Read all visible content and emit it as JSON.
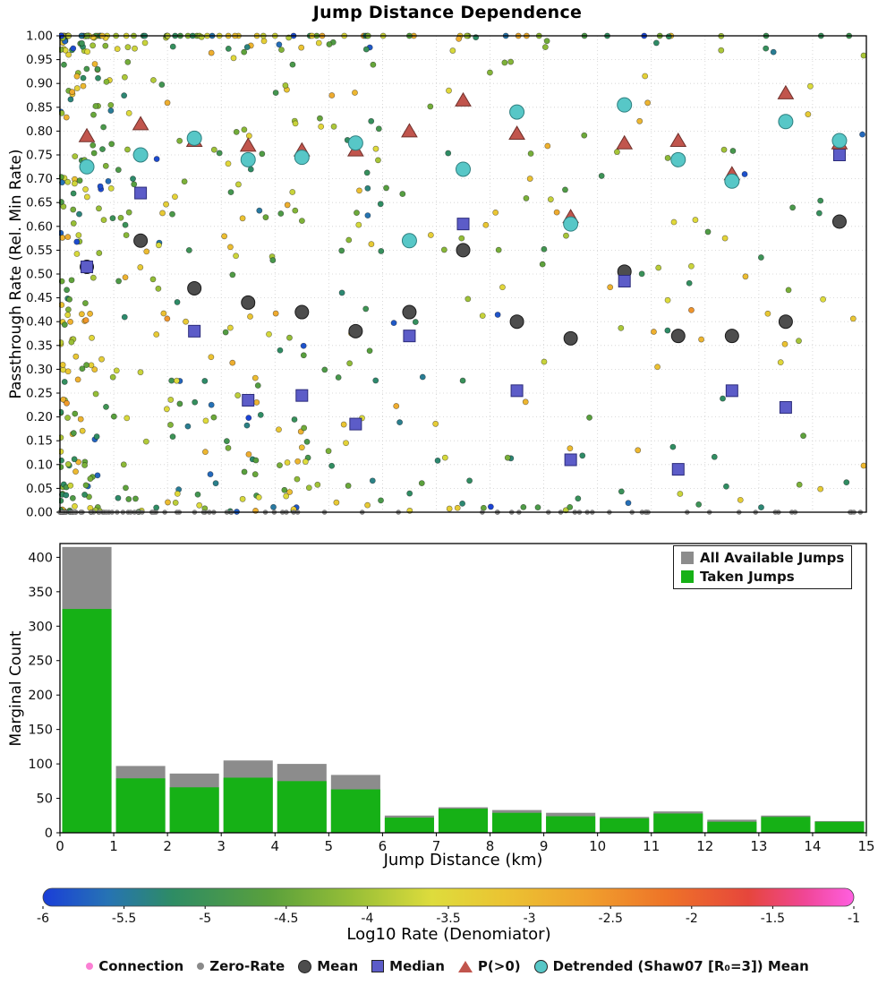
{
  "page_title": "Jump Distance Dependence",
  "chart_data": [
    {
      "type": "scatter",
      "title": "Jump Distance Dependence",
      "ylabel": "Passthrough Rate (Rel. Min Rate)",
      "xlim": [
        0,
        15
      ],
      "ylim": [
        0,
        1
      ],
      "grid": true,
      "yticks": [
        "0.00",
        "0.05",
        "0.10",
        "0.15",
        "0.20",
        "0.25",
        "0.30",
        "0.35",
        "0.40",
        "0.45",
        "0.50",
        "0.55",
        "0.60",
        "0.65",
        "0.70",
        "0.75",
        "0.80",
        "0.85",
        "0.90",
        "0.95",
        "1.00"
      ],
      "series": [
        {
          "name": "Mean",
          "marker": "circle",
          "fill": "#4d4d4d",
          "edge": "#1a1a1a",
          "x": [
            0.5,
            1.5,
            2.5,
            3.5,
            4.5,
            5.5,
            6.5,
            7.5,
            8.5,
            9.5,
            10.5,
            11.5,
            12.5,
            13.5,
            14.5
          ],
          "y": [
            0.515,
            0.57,
            0.47,
            0.44,
            0.42,
            0.38,
            0.42,
            0.55,
            0.4,
            0.365,
            0.505,
            0.37,
            0.37,
            0.4,
            0.61
          ]
        },
        {
          "name": "Median",
          "marker": "square",
          "fill": "#5c5cc8",
          "edge": "#2b2b7a",
          "x": [
            0.5,
            1.5,
            2.5,
            3.5,
            4.5,
            5.5,
            6.5,
            7.5,
            8.5,
            9.5,
            10.5,
            11.5,
            12.5,
            13.5,
            14.5
          ],
          "y": [
            0.515,
            0.67,
            0.38,
            0.235,
            0.245,
            0.185,
            0.37,
            0.605,
            0.255,
            0.11,
            0.485,
            0.09,
            0.255,
            0.22,
            0.75
          ]
        },
        {
          "name": "P(>0)",
          "marker": "triangle",
          "fill": "#c1554d",
          "edge": "#70302b",
          "x": [
            0.5,
            1.5,
            2.5,
            3.5,
            4.5,
            5.5,
            6.5,
            7.5,
            8.5,
            9.5,
            10.5,
            11.5,
            12.5,
            13.5,
            14.5
          ],
          "y": [
            0.79,
            0.815,
            0.78,
            0.77,
            0.76,
            0.76,
            0.8,
            0.865,
            0.795,
            0.62,
            0.775,
            0.78,
            0.71,
            0.88,
            0.775
          ]
        },
        {
          "name": "Detrended (Shaw07 [R₀=3]) Mean",
          "marker": "circle",
          "fill": "#57c7c7",
          "edge": "#2f7f7f",
          "x": [
            0.5,
            1.5,
            2.5,
            3.5,
            4.5,
            5.5,
            6.5,
            7.5,
            8.5,
            9.5,
            10.5,
            11.5,
            12.5,
            13.5,
            14.5
          ],
          "y": [
            0.725,
            0.75,
            0.785,
            0.74,
            0.745,
            0.775,
            0.57,
            0.72,
            0.84,
            0.605,
            0.855,
            0.74,
            0.695,
            0.82,
            0.78
          ]
        }
      ],
      "point_cloud": {
        "note": "individual colored jump points, density estimated from pixels",
        "seed": 1337,
        "bin_counts": [
          200,
          55,
          48,
          55,
          52,
          45,
          16,
          22,
          20,
          17,
          14,
          19,
          12,
          15,
          11
        ],
        "color_range": [
          -6,
          -1
        ],
        "point_radius": 3.1
      },
      "zero_rate": {
        "name": "Zero-Rate",
        "color": "#8a8a8a",
        "count": 100,
        "y": 0
      }
    },
    {
      "type": "bar",
      "ylabel": "Marginal Count",
      "xlabel": "Jump Distance (km)",
      "ylim": [
        0,
        420
      ],
      "bin_edges": [
        0,
        1,
        2,
        3,
        4,
        5,
        6,
        7,
        8,
        9,
        10,
        11,
        12,
        13,
        14,
        15
      ],
      "xticks": [
        "0",
        "1",
        "2",
        "3",
        "4",
        "5",
        "6",
        "7",
        "8",
        "9",
        "10",
        "11",
        "12",
        "13",
        "14",
        "15"
      ],
      "yticks": [
        "0",
        "50",
        "100",
        "150",
        "200",
        "250",
        "300",
        "350",
        "400"
      ],
      "legend_position": "upper right",
      "series": [
        {
          "name": "All Available Jumps",
          "color": "#8c8c8c",
          "values": [
            415,
            97,
            86,
            105,
            100,
            84,
            25,
            37,
            33,
            29,
            23,
            31,
            19,
            25,
            17
          ]
        },
        {
          "name": "Taken Jumps",
          "color": "#16b116",
          "values": [
            325,
            79,
            66,
            80,
            75,
            63,
            22,
            35,
            29,
            24,
            21,
            28,
            16,
            23,
            16
          ]
        }
      ]
    },
    {
      "type": "colorbar",
      "label": "Log10 Rate (Denomiator)",
      "range": [
        -6,
        -1
      ],
      "ticks": [
        "-6",
        "-5.5",
        "-5",
        "-4.5",
        "-4",
        "-3.5",
        "-3",
        "-2.5",
        "-2",
        "-1.5",
        "-1"
      ],
      "stops": [
        {
          "t": 0.0,
          "c": "#1a3ed8"
        },
        {
          "t": 0.08,
          "c": "#2673b4"
        },
        {
          "t": 0.16,
          "c": "#2e8c64"
        },
        {
          "t": 0.28,
          "c": "#5aa03c"
        },
        {
          "t": 0.38,
          "c": "#96be37"
        },
        {
          "t": 0.48,
          "c": "#dedc3c"
        },
        {
          "t": 0.57,
          "c": "#ebc332"
        },
        {
          "t": 0.67,
          "c": "#f0a02d"
        },
        {
          "t": 0.77,
          "c": "#ee7328"
        },
        {
          "t": 0.87,
          "c": "#e6463c"
        },
        {
          "t": 0.94,
          "c": "#f04696"
        },
        {
          "t": 1.0,
          "c": "#ff5fe1"
        }
      ]
    }
  ],
  "bottom_legend": [
    {
      "label": "Connection",
      "marker": "circle-small",
      "color": "#fb7fd4"
    },
    {
      "label": "Zero-Rate",
      "marker": "circle-small",
      "color": "#8a8a8a"
    },
    {
      "label": "Mean",
      "marker": "circle",
      "color": "#4d4d4d"
    },
    {
      "label": "Median",
      "marker": "square",
      "color": "#5c5cc8"
    },
    {
      "label": "P(>0)",
      "marker": "triangle",
      "color": "#c1554d"
    },
    {
      "label": "Detrended (Shaw07 [R₀=3]) Mean",
      "marker": "circle",
      "color": "#57c7c7"
    }
  ]
}
